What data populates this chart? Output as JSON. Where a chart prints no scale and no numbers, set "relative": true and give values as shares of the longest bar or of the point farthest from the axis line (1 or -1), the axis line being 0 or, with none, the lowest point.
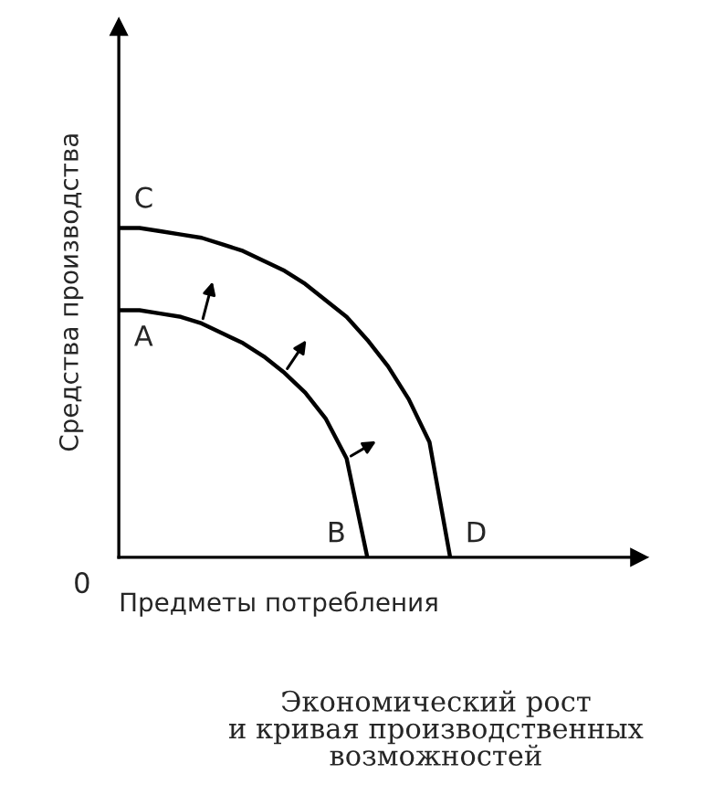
{
  "chart_data": {
    "type": "line",
    "relative": true,
    "title": "Экономический рост\nи кривая производственных\nвозможностей",
    "xlabel": "Предметы потребления",
    "ylabel": "Средства производства",
    "marker": "none",
    "line_style": "solid",
    "categories": [
      null,
      null,
      null,
      null,
      null,
      null,
      null,
      null,
      null,
      null,
      null,
      null,
      null,
      null,
      null,
      null,
      null
    ],
    "series": [
      {
        "color": "#000000",
        "values": [
          0.75,
          0.75,
          0.74,
          0.73,
          0.71,
          0.68,
          0.65,
          0.61,
          0.56,
          0.5,
          0.42,
          0.3,
          0,
          null,
          null,
          null,
          null
        ]
      },
      {
        "color": "#000000",
        "values": [
          1,
          1,
          0.99,
          0.98,
          0.97,
          0.95,
          0.93,
          0.9,
          0.87,
          0.83,
          0.78,
          0.73,
          0.66,
          0.58,
          0.48,
          0.35,
          0
        ]
      }
    ],
    "annotations": [
      "A",
      "B",
      "C",
      "D",
      "0"
    ]
  }
}
